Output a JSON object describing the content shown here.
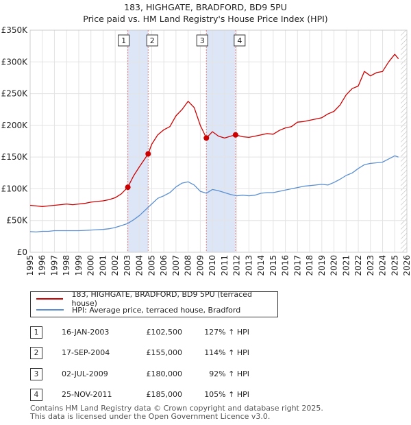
{
  "header": {
    "title_line1": "183, HIGHGATE, BRADFORD, BD9 5PU",
    "title_line2": "Price paid vs. HM Land Registry's House Price Index (HPI)"
  },
  "legend": {
    "property_label": "183, HIGHGATE, BRADFORD, BD9 5PU (terraced house)",
    "hpi_label": "HPI: Average price, terraced house, Bradford"
  },
  "sales": [
    {
      "num": "1",
      "date": "16-JAN-2003",
      "price": "£102,500",
      "hpi": "127% ↑ HPI"
    },
    {
      "num": "2",
      "date": "17-SEP-2004",
      "price": "£155,000",
      "hpi": "114% ↑ HPI"
    },
    {
      "num": "3",
      "date": "02-JUL-2009",
      "price": "£180,000",
      "hpi": "92% ↑ HPI"
    },
    {
      "num": "4",
      "date": "25-NOV-2011",
      "price": "£185,000",
      "hpi": "105% ↑ HPI"
    }
  ],
  "footer": {
    "line1": "Contains HM Land Registry data © Crown copyright and database right 2025.",
    "line2": "This data is licensed under the Open Government Licence v3.0."
  },
  "colors": {
    "property": "#cc0000",
    "hpi": "#5b8fd1",
    "band": "#dce6f7",
    "grid": "#e3e3e3",
    "marker_line": "#e08080"
  },
  "chart_data": {
    "type": "line",
    "title": "183, HIGHGATE, BRADFORD, BD9 5PU — Price paid vs. HM Land Registry's House Price Index (HPI)",
    "xlabel": "",
    "ylabel": "",
    "xlim": [
      1995,
      2026
    ],
    "ylim": [
      0,
      350000
    ],
    "grid": true,
    "x_ticks": [
      "1995",
      "1996",
      "1997",
      "1998",
      "1999",
      "2000",
      "2001",
      "2002",
      "2003",
      "2004",
      "2005",
      "2006",
      "2007",
      "2008",
      "2009",
      "2010",
      "2011",
      "2012",
      "2013",
      "2014",
      "2015",
      "2016",
      "2017",
      "2018",
      "2019",
      "2020",
      "2021",
      "2022",
      "2023",
      "2024",
      "2025",
      "2026"
    ],
    "y_ticks": [
      {
        "value": 0,
        "label": "£0"
      },
      {
        "value": 50000,
        "label": "£50K"
      },
      {
        "value": 100000,
        "label": "£100K"
      },
      {
        "value": 150000,
        "label": "£150K"
      },
      {
        "value": 200000,
        "label": "£200K"
      },
      {
        "value": 250000,
        "label": "£250K"
      },
      {
        "value": 300000,
        "label": "£300K"
      },
      {
        "value": 350000,
        "label": "£350K"
      }
    ],
    "shaded_ranges": [
      [
        2003.04,
        2004.71
      ],
      [
        2009.5,
        2011.9
      ]
    ],
    "hatched_from": 2025.5,
    "series": [
      {
        "name": "183, HIGHGATE, BRADFORD, BD9 5PU (terraced house)",
        "x": [
          1995.0,
          1995.5,
          1996.0,
          1996.5,
          1997.0,
          1997.5,
          1998.0,
          1998.5,
          1999.0,
          1999.5,
          2000.0,
          2000.5,
          2001.0,
          2001.5,
          2002.0,
          2002.5,
          2003.04,
          2003.5,
          2004.0,
          2004.71,
          2005.0,
          2005.5,
          2006.0,
          2006.5,
          2007.0,
          2007.5,
          2008.0,
          2008.5,
          2009.0,
          2009.5,
          2010.0,
          2010.5,
          2011.0,
          2011.5,
          2011.9,
          2012.5,
          2013.0,
          2013.5,
          2014.0,
          2014.5,
          2015.0,
          2015.5,
          2016.0,
          2016.5,
          2017.0,
          2017.5,
          2018.0,
          2018.5,
          2019.0,
          2019.5,
          2020.0,
          2020.5,
          2021.0,
          2021.5,
          2022.0,
          2022.5,
          2023.0,
          2023.5,
          2024.0,
          2024.5,
          2025.0,
          2025.3
        ],
        "y": [
          74000,
          73000,
          72000,
          73000,
          74000,
          75000,
          76000,
          75000,
          76000,
          77000,
          79000,
          80000,
          81000,
          83000,
          86000,
          92000,
          102500,
          120000,
          135000,
          155000,
          170000,
          185000,
          193000,
          198000,
          215000,
          225000,
          238000,
          228000,
          200000,
          180000,
          190000,
          183000,
          180000,
          183000,
          185000,
          182000,
          181000,
          183000,
          185000,
          187000,
          186000,
          192000,
          196000,
          198000,
          205000,
          206000,
          208000,
          210000,
          212000,
          218000,
          222000,
          232000,
          248000,
          258000,
          262000,
          285000,
          278000,
          283000,
          285000,
          300000,
          312000,
          305000
        ]
      },
      {
        "name": "HPI: Average price, terraced house, Bradford",
        "x": [
          1995.0,
          1995.5,
          1996.0,
          1996.5,
          1997.0,
          1997.5,
          1998.0,
          1998.5,
          1999.0,
          1999.5,
          2000.0,
          2000.5,
          2001.0,
          2001.5,
          2002.0,
          2002.5,
          2003.0,
          2003.5,
          2004.0,
          2004.5,
          2005.0,
          2005.5,
          2006.0,
          2006.5,
          2007.0,
          2007.5,
          2008.0,
          2008.5,
          2009.0,
          2009.5,
          2010.0,
          2010.5,
          2011.0,
          2011.5,
          2012.0,
          2012.5,
          2013.0,
          2013.5,
          2014.0,
          2014.5,
          2015.0,
          2015.5,
          2016.0,
          2016.5,
          2017.0,
          2017.5,
          2018.0,
          2018.5,
          2019.0,
          2019.5,
          2020.0,
          2020.5,
          2021.0,
          2021.5,
          2022.0,
          2022.5,
          2023.0,
          2023.5,
          2024.0,
          2024.5,
          2025.0,
          2025.3
        ],
        "y": [
          32500,
          32000,
          33000,
          33000,
          34000,
          34000,
          34000,
          34000,
          34000,
          34500,
          35000,
          35500,
          36000,
          37000,
          39000,
          42000,
          45000,
          51000,
          58000,
          67000,
          76000,
          85000,
          89000,
          94000,
          103000,
          109000,
          111000,
          106000,
          96000,
          93000,
          99000,
          97000,
          94000,
          91000,
          89000,
          90000,
          89000,
          90000,
          93000,
          94000,
          94000,
          96000,
          98000,
          100000,
          102000,
          104000,
          105000,
          106000,
          107000,
          106000,
          110000,
          115000,
          121000,
          125000,
          132000,
          138000,
          140000,
          141000,
          142000,
          147000,
          152000,
          150000
        ]
      }
    ],
    "sale_points": [
      {
        "label": "1",
        "x": 2003.04,
        "y": 102500
      },
      {
        "label": "2",
        "x": 2004.71,
        "y": 155000
      },
      {
        "label": "3",
        "x": 2009.5,
        "y": 180000
      },
      {
        "label": "4",
        "x": 2011.9,
        "y": 185000
      }
    ]
  }
}
